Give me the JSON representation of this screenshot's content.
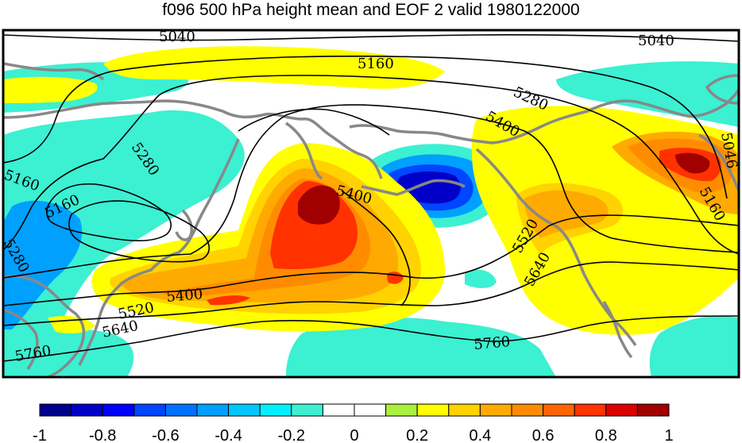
{
  "title": "f096 500 hPa height mean and EOF 2 valid 1980122000",
  "contour_labels": [
    "5040",
    "5040",
    "5160",
    "5280",
    "5400",
    "5046",
    "5160",
    "5280",
    "5160",
    "5400",
    "5160",
    "5280",
    "5520",
    "5640",
    "5400",
    "5520",
    "5640",
    "5760",
    "5760"
  ],
  "colorbar": {
    "colors": [
      "#00008f",
      "#0000c8",
      "#0000ff",
      "#0045ff",
      "#0072ff",
      "#00a0ff",
      "#00c8ff",
      "#00f0ff",
      "#3cf0d2",
      "#ffffff",
      "#ffffff",
      "#aaf03c",
      "#ffff00",
      "#ffd200",
      "#ffaa00",
      "#ff8c00",
      "#ff6400",
      "#ff3200",
      "#dc0000",
      "#a00000"
    ],
    "tick_labels": [
      "-1",
      "-0.8",
      "-0.6",
      "-0.4",
      "-0.2",
      "0",
      "0.2",
      "0.4",
      "0.6",
      "0.8",
      "1"
    ]
  },
  "fill_colors": {
    "cyan": "#3cf0d2",
    "yellow": "#ffff00",
    "gold": "#ffd200",
    "orange": "#ffaa00",
    "dark_orange": "#ff8c00",
    "red_orange": "#ff3200",
    "dark_red": "#a00000",
    "blue_light": "#00a0ff",
    "blue": "#0045ff",
    "blue_dark": "#0000c8",
    "coast": "#888888"
  }
}
